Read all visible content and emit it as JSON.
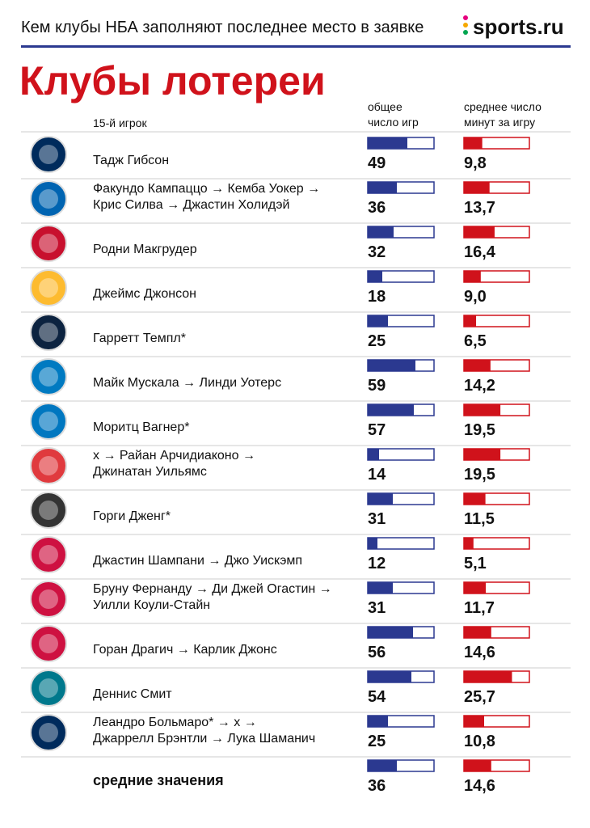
{
  "header": {
    "subtitle": "Кем клубы НБА заполняют последнее место в заявке",
    "brand": "sports.ru",
    "title": "Клубы лотереи"
  },
  "columns": {
    "player": "15-й игрок",
    "games": [
      "общее",
      "число игр"
    ],
    "minutes": [
      "среднее число",
      "минут за игру"
    ]
  },
  "scales": {
    "games": {
      "xlim": [
        0,
        82
      ],
      "color": "#2b3990"
    },
    "minutes": {
      "xlim": [
        0,
        35
      ],
      "color": "#d0121b"
    }
  },
  "rows": [
    {
      "player": [
        "Тадж Гибсон"
      ],
      "games": 49,
      "minutes": 9.8,
      "minutes_label": "9,8",
      "color": "#002b5c"
    },
    {
      "player": [
        "Факундо Кампаццо → Кемба Уокер →",
        "Крис Силва → Джастин Холидэй"
      ],
      "games": 36,
      "minutes": 13.7,
      "minutes_label": "13,7",
      "color": "#0064b1"
    },
    {
      "player": [
        "Родни Макгрудер"
      ],
      "games": 32,
      "minutes": 16.4,
      "minutes_label": "16,4",
      "color": "#c8102e"
    },
    {
      "player": [
        "Джеймс Джонсон"
      ],
      "games": 18,
      "minutes": 9.0,
      "minutes_label": "9,0",
      "color": "#fdbb30"
    },
    {
      "player": [
        "Гарретт Темпл*"
      ],
      "games": 25,
      "minutes": 6.5,
      "minutes_label": "6,5",
      "color": "#0c2340"
    },
    {
      "player": [
        "Майк Мускала → Линди Уотерс"
      ],
      "games": 59,
      "minutes": 14.2,
      "minutes_label": "14,2",
      "color": "#007ac1"
    },
    {
      "player": [
        "Моритц Вагнер*"
      ],
      "games": 57,
      "minutes": 19.5,
      "minutes_label": "19,5",
      "color": "#0077c0"
    },
    {
      "player": [
        "x → Райан Арчидиаконо →",
        "Джинатан Уильямс"
      ],
      "games": 14,
      "minutes": 19.5,
      "minutes_label": "19,5",
      "color": "#e03a3e"
    },
    {
      "player": [
        "Горги Дженг*"
      ],
      "games": 31,
      "minutes": 11.5,
      "minutes_label": "11,5",
      "color": "#333333"
    },
    {
      "player": [
        "Джастин Шампани → Джо Уискэмп"
      ],
      "games": 12,
      "minutes": 5.1,
      "minutes_label": "5,1",
      "color": "#ce1141"
    },
    {
      "player": [
        "Бруну Фернанду → Ди Джей Огастин →",
        "Уилли Коули-Стайн"
      ],
      "games": 31,
      "minutes": 11.7,
      "minutes_label": "11,7",
      "color": "#ce1141"
    },
    {
      "player": [
        "Горан Драгич → Карлик Джонс"
      ],
      "games": 56,
      "minutes": 14.6,
      "minutes_label": "14,6",
      "color": "#ce1141"
    },
    {
      "player": [
        "Деннис Смит"
      ],
      "games": 54,
      "minutes": 25.7,
      "minutes_label": "25,7",
      "color": "#00788c"
    },
    {
      "player": [
        "Леандро Больмаро* → x →",
        "Джаррелл Брэнтли → Лука Шаманич"
      ],
      "games": 25,
      "minutes": 10.8,
      "minutes_label": "10,8",
      "color": "#002b5c"
    }
  ],
  "average": {
    "label": "средние значения",
    "games": 36,
    "minutes": 14.6,
    "minutes_label": "14,6"
  }
}
